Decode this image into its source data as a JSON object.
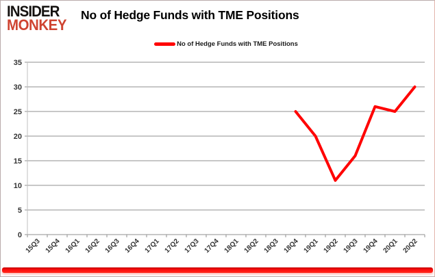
{
  "logo": {
    "line1": "INSIDER",
    "line2": "MONKEY"
  },
  "header": {
    "title": "No of Hedge Funds with TME Positions"
  },
  "legend": {
    "label": "No of Hedge Funds with TME Positions",
    "color": "#ff0000"
  },
  "chart_data": {
    "type": "line",
    "title": "No of Hedge Funds with TME Positions",
    "categories": [
      "15Q3",
      "15Q4",
      "16Q1",
      "16Q2",
      "16Q3",
      "16Q4",
      "17Q1",
      "17Q2",
      "17Q3",
      "17Q4",
      "18Q1",
      "18Q2",
      "18Q3",
      "18Q4",
      "19Q1",
      "19Q2",
      "19Q3",
      "19Q4",
      "20Q1",
      "20Q2"
    ],
    "series": [
      {
        "name": "No of Hedge Funds with TME Positions",
        "color": "#ff0000",
        "values": [
          null,
          null,
          null,
          null,
          null,
          null,
          null,
          null,
          null,
          null,
          null,
          null,
          null,
          25,
          20,
          11,
          16,
          26,
          25,
          30
        ]
      }
    ],
    "xlabel": "",
    "ylabel": "",
    "ylim": [
      0,
      35
    ],
    "ytick_step": 5,
    "yticks": [
      0,
      5,
      10,
      15,
      20,
      25,
      30,
      35
    ],
    "grid": true,
    "legend_position": "top-center",
    "colors": {
      "grid": "#8f8f8f",
      "axis": "#bfbfbf",
      "tick_label": "#333333",
      "title": "#000000",
      "logo_accent": "#cf4431",
      "bottom_bar": "#ff0000"
    }
  }
}
